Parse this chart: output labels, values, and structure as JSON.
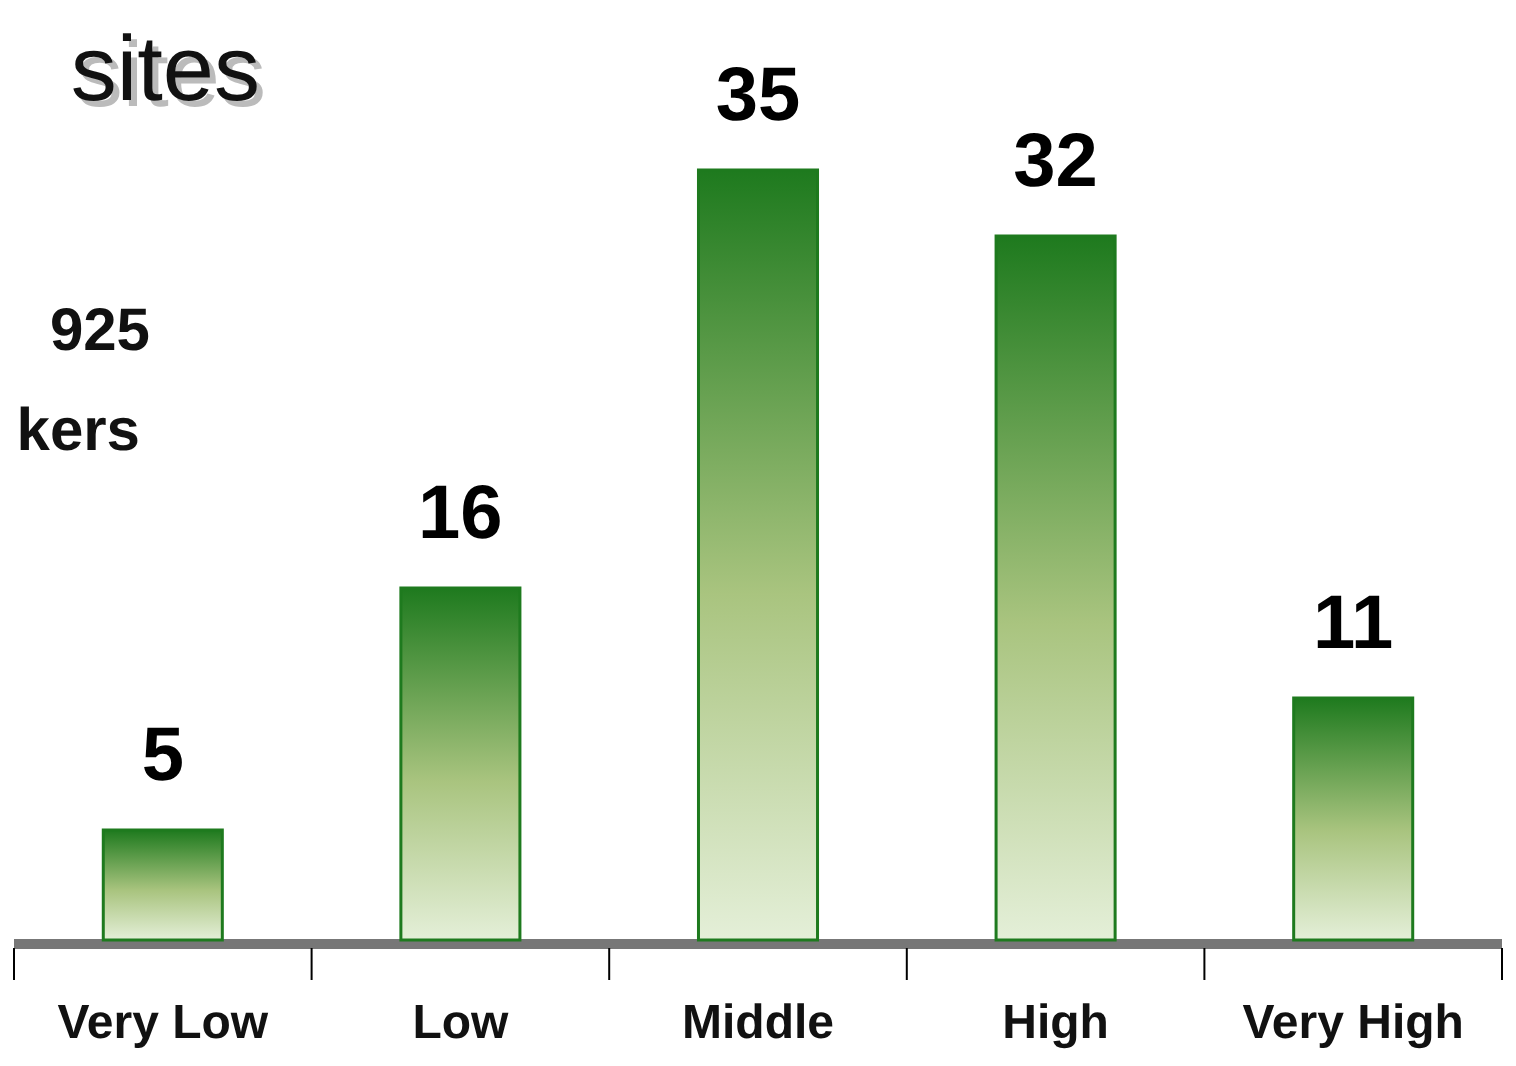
{
  "chart_data": {
    "type": "bar",
    "title": "sites",
    "annotations": [
      "925",
      "kers"
    ],
    "categories": [
      "Very Low",
      "Low",
      "Middle",
      "High",
      "Very High"
    ],
    "values": [
      5,
      16,
      35,
      32,
      11
    ],
    "color": "#1e7a1e",
    "data_labels": true
  }
}
